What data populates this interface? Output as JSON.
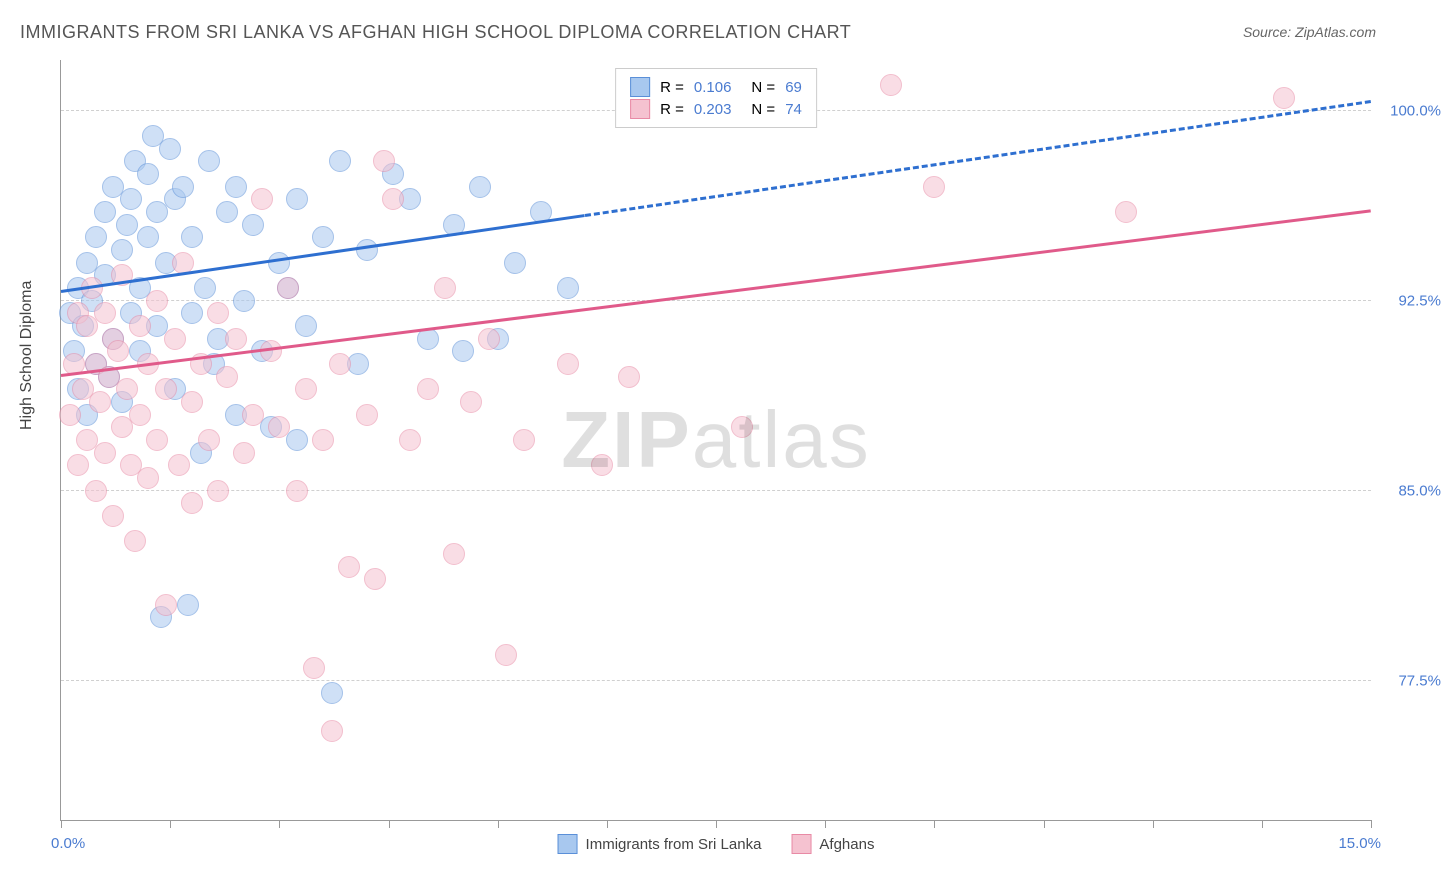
{
  "title": "IMMIGRANTS FROM SRI LANKA VS AFGHAN HIGH SCHOOL DIPLOMA CORRELATION CHART",
  "source_prefix": "Source: ",
  "source_name": "ZipAtlas.com",
  "ylabel": "High School Diploma",
  "watermark_bold": "ZIP",
  "watermark_light": "atlas",
  "chart": {
    "type": "scatter",
    "background_color": "#ffffff",
    "grid_color": "#d0d0d0",
    "axis_color": "#999999",
    "tick_label_color": "#4a7bd0",
    "xlim": [
      0.0,
      15.0
    ],
    "ylim": [
      72.0,
      102.0
    ],
    "xtick_label_min": "0.0%",
    "xtick_label_max": "15.0%",
    "xtick_positions": [
      0.0,
      1.25,
      2.5,
      3.75,
      5.0,
      6.25,
      7.5,
      8.75,
      10.0,
      11.25,
      12.5,
      13.75,
      15.0
    ],
    "ytick_gridlines": [
      77.5,
      85.0,
      92.5,
      100.0
    ],
    "ytick_labels": [
      "77.5%",
      "85.0%",
      "92.5%",
      "100.0%"
    ],
    "marker_radius": 10,
    "marker_opacity": 0.55,
    "series": [
      {
        "name": "Immigrants from Sri Lanka",
        "short": "sri_lanka",
        "color_fill": "#a8c8ef",
        "color_stroke": "#5a8fd8",
        "R_label": "R =",
        "R_value": "0.106",
        "N_label": "N =",
        "N_value": "69",
        "trend": {
          "x0": 0.0,
          "y0": 92.8,
          "x1": 15.0,
          "y1": 100.3,
          "solid_until_x": 6.0,
          "width": 3,
          "color": "#2e6fd0"
        },
        "points": [
          [
            0.1,
            92.0
          ],
          [
            0.15,
            90.5
          ],
          [
            0.2,
            93.0
          ],
          [
            0.2,
            89.0
          ],
          [
            0.25,
            91.5
          ],
          [
            0.3,
            94.0
          ],
          [
            0.3,
            88.0
          ],
          [
            0.35,
            92.5
          ],
          [
            0.4,
            95.0
          ],
          [
            0.4,
            90.0
          ],
          [
            0.5,
            96.0
          ],
          [
            0.5,
            93.5
          ],
          [
            0.55,
            89.5
          ],
          [
            0.6,
            97.0
          ],
          [
            0.6,
            91.0
          ],
          [
            0.7,
            94.5
          ],
          [
            0.7,
            88.5
          ],
          [
            0.75,
            95.5
          ],
          [
            0.8,
            96.5
          ],
          [
            0.8,
            92.0
          ],
          [
            0.85,
            98.0
          ],
          [
            0.9,
            93.0
          ],
          [
            0.9,
            90.5
          ],
          [
            1.0,
            97.5
          ],
          [
            1.0,
            95.0
          ],
          [
            1.05,
            99.0
          ],
          [
            1.1,
            91.5
          ],
          [
            1.1,
            96.0
          ],
          [
            1.15,
            80.0
          ],
          [
            1.2,
            94.0
          ],
          [
            1.25,
            98.5
          ],
          [
            1.3,
            89.0
          ],
          [
            1.3,
            96.5
          ],
          [
            1.4,
            97.0
          ],
          [
            1.45,
            80.5
          ],
          [
            1.5,
            95.0
          ],
          [
            1.5,
            92.0
          ],
          [
            1.6,
            86.5
          ],
          [
            1.65,
            93.0
          ],
          [
            1.7,
            98.0
          ],
          [
            1.75,
            90.0
          ],
          [
            1.8,
            91.0
          ],
          [
            1.9,
            96.0
          ],
          [
            2.0,
            97.0
          ],
          [
            2.0,
            88.0
          ],
          [
            2.1,
            92.5
          ],
          [
            2.2,
            95.5
          ],
          [
            2.3,
            90.5
          ],
          [
            2.4,
            87.5
          ],
          [
            2.5,
            94.0
          ],
          [
            2.6,
            93.0
          ],
          [
            2.7,
            96.5
          ],
          [
            2.7,
            87.0
          ],
          [
            2.8,
            91.5
          ],
          [
            3.0,
            95.0
          ],
          [
            3.1,
            77.0
          ],
          [
            3.2,
            98.0
          ],
          [
            3.4,
            90.0
          ],
          [
            3.5,
            94.5
          ],
          [
            3.8,
            97.5
          ],
          [
            4.0,
            96.5
          ],
          [
            4.2,
            91.0
          ],
          [
            4.5,
            95.5
          ],
          [
            4.6,
            90.5
          ],
          [
            4.8,
            97.0
          ],
          [
            5.0,
            91.0
          ],
          [
            5.2,
            94.0
          ],
          [
            5.5,
            96.0
          ],
          [
            5.8,
            93.0
          ]
        ]
      },
      {
        "name": "Afghans",
        "short": "afghans",
        "color_fill": "#f5c2d0",
        "color_stroke": "#e88aa5",
        "R_label": "R =",
        "R_value": "0.203",
        "N_label": "N =",
        "N_value": "74",
        "trend": {
          "x0": 0.0,
          "y0": 89.5,
          "x1": 15.0,
          "y1": 96.0,
          "solid_until_x": 15.0,
          "width": 3,
          "color": "#e05a8a"
        },
        "points": [
          [
            0.1,
            88.0
          ],
          [
            0.15,
            90.0
          ],
          [
            0.2,
            86.0
          ],
          [
            0.2,
            92.0
          ],
          [
            0.25,
            89.0
          ],
          [
            0.3,
            91.5
          ],
          [
            0.3,
            87.0
          ],
          [
            0.35,
            93.0
          ],
          [
            0.4,
            85.0
          ],
          [
            0.4,
            90.0
          ],
          [
            0.45,
            88.5
          ],
          [
            0.5,
            92.0
          ],
          [
            0.5,
            86.5
          ],
          [
            0.55,
            89.5
          ],
          [
            0.6,
            91.0
          ],
          [
            0.6,
            84.0
          ],
          [
            0.65,
            90.5
          ],
          [
            0.7,
            87.5
          ],
          [
            0.7,
            93.5
          ],
          [
            0.75,
            89.0
          ],
          [
            0.8,
            86.0
          ],
          [
            0.85,
            83.0
          ],
          [
            0.9,
            91.5
          ],
          [
            0.9,
            88.0
          ],
          [
            1.0,
            90.0
          ],
          [
            1.0,
            85.5
          ],
          [
            1.1,
            92.5
          ],
          [
            1.1,
            87.0
          ],
          [
            1.2,
            89.0
          ],
          [
            1.2,
            80.5
          ],
          [
            1.3,
            91.0
          ],
          [
            1.35,
            86.0
          ],
          [
            1.4,
            94.0
          ],
          [
            1.5,
            88.5
          ],
          [
            1.5,
            84.5
          ],
          [
            1.6,
            90.0
          ],
          [
            1.7,
            87.0
          ],
          [
            1.8,
            92.0
          ],
          [
            1.8,
            85.0
          ],
          [
            1.9,
            89.5
          ],
          [
            2.0,
            91.0
          ],
          [
            2.1,
            86.5
          ],
          [
            2.2,
            88.0
          ],
          [
            2.3,
            96.5
          ],
          [
            2.4,
            90.5
          ],
          [
            2.5,
            87.5
          ],
          [
            2.6,
            93.0
          ],
          [
            2.7,
            85.0
          ],
          [
            2.8,
            89.0
          ],
          [
            2.9,
            78.0
          ],
          [
            3.0,
            87.0
          ],
          [
            3.1,
            75.5
          ],
          [
            3.2,
            90.0
          ],
          [
            3.3,
            82.0
          ],
          [
            3.5,
            88.0
          ],
          [
            3.6,
            81.5
          ],
          [
            3.7,
            98.0
          ],
          [
            3.8,
            96.5
          ],
          [
            4.0,
            87.0
          ],
          [
            4.2,
            89.0
          ],
          [
            4.4,
            93.0
          ],
          [
            4.5,
            82.5
          ],
          [
            4.7,
            88.5
          ],
          [
            4.9,
            91.0
          ],
          [
            5.1,
            78.5
          ],
          [
            5.3,
            87.0
          ],
          [
            5.8,
            90.0
          ],
          [
            6.2,
            86.0
          ],
          [
            6.5,
            89.5
          ],
          [
            7.8,
            87.5
          ],
          [
            9.5,
            101.0
          ],
          [
            10.0,
            97.0
          ],
          [
            12.2,
            96.0
          ],
          [
            14.0,
            100.5
          ]
        ]
      }
    ]
  },
  "legend_bottom": [
    {
      "label": "Immigrants from Sri Lanka",
      "fill": "#a8c8ef",
      "stroke": "#5a8fd8"
    },
    {
      "label": "Afghans",
      "fill": "#f5c2d0",
      "stroke": "#e88aa5"
    }
  ]
}
